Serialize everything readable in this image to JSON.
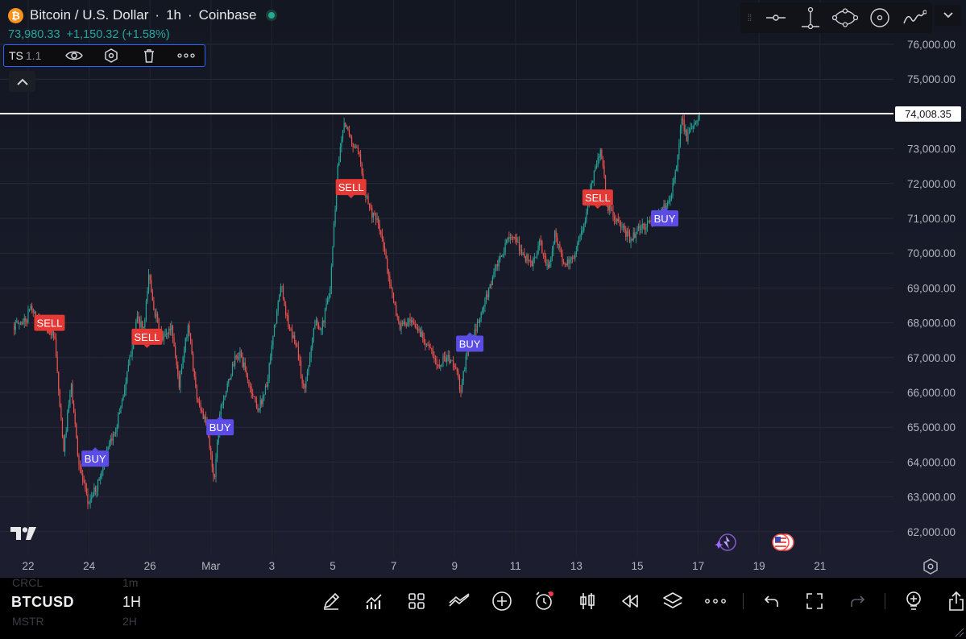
{
  "header": {
    "currency_icon": "bitcoin-icon",
    "symbol_title": "Bitcoin / U.S. Dollar",
    "interval": "1h",
    "exchange": "Coinbase",
    "last_price": "73,980.33",
    "change": "+1,150.32 (+1.58%)",
    "change_color": "#26a69a"
  },
  "indicator": {
    "name": "TS",
    "param": "1.1",
    "icons": [
      "eye-icon",
      "settings-hex-icon",
      "trash-icon",
      "more-icon"
    ]
  },
  "drawing_toolbar": {
    "tools": [
      "horizontal-ray-icon",
      "vertical-line-icon",
      "shapes-icon",
      "circle-icon",
      "brush-icon"
    ]
  },
  "price_marker": {
    "label": "74,008.35",
    "value": 74008.35
  },
  "colors": {
    "background_top": "#131722",
    "background_bottom": "#1c1d2e",
    "up": "#26a69a",
    "down": "#ef5350",
    "sell_tag": "#e53935",
    "buy_tag": "#5b4ce6"
  },
  "chart_data": {
    "type": "candlestick",
    "title": "",
    "xlabel": "",
    "ylabel": "",
    "ylim": [
      61500,
      76500
    ],
    "y_ticks": [
      62000,
      63000,
      64000,
      65000,
      66000,
      67000,
      68000,
      69000,
      70000,
      71000,
      72000,
      73000,
      74000,
      75000,
      76000
    ],
    "y_tick_labels": [
      "62,000.00",
      "63,000.00",
      "64,000.00",
      "65,000.00",
      "66,000.00",
      "67,000.00",
      "68,000.00",
      "69,000.00",
      "70,000.00",
      "71,000.00",
      "72,000.00",
      "73,000.00",
      "74,000.00",
      "75,000.00",
      "76,000.00"
    ],
    "x_ticks": [
      {
        "label": "22",
        "day": 0
      },
      {
        "label": "24",
        "day": 2
      },
      {
        "label": "26",
        "day": 4
      },
      {
        "label": "Mar",
        "day": 6
      },
      {
        "label": "3",
        "day": 8
      },
      {
        "label": "5",
        "day": 10
      },
      {
        "label": "7",
        "day": 12
      },
      {
        "label": "9",
        "day": 14
      },
      {
        "label": "11",
        "day": 16
      },
      {
        "label": "13",
        "day": 18
      },
      {
        "label": "15",
        "day": 20
      },
      {
        "label": "17",
        "day": 22
      },
      {
        "label": "19",
        "day": 24
      },
      {
        "label": "21",
        "day": 26
      }
    ],
    "x_domain": [
      -0.46,
      28.9
    ],
    "price_path": [
      [
        -0.46,
        67900
      ],
      [
        0.0,
        68100
      ],
      [
        0.1,
        68500
      ],
      [
        0.35,
        68100
      ],
      [
        0.55,
        68000
      ],
      [
        0.9,
        67600
      ],
      [
        1.2,
        64300
      ],
      [
        1.45,
        66200
      ],
      [
        1.7,
        64000
      ],
      [
        2.0,
        62800
      ],
      [
        2.3,
        63300
      ],
      [
        2.6,
        64200
      ],
      [
        2.9,
        64900
      ],
      [
        3.25,
        66300
      ],
      [
        3.6,
        68100
      ],
      [
        3.85,
        67800
      ],
      [
        4.0,
        69400
      ],
      [
        4.2,
        68300
      ],
      [
        4.45,
        67500
      ],
      [
        4.75,
        67900
      ],
      [
        5.0,
        66200
      ],
      [
        5.3,
        68000
      ],
      [
        5.55,
        66000
      ],
      [
        5.9,
        65000
      ],
      [
        6.15,
        63500
      ],
      [
        6.35,
        65600
      ],
      [
        6.6,
        66200
      ],
      [
        6.8,
        66900
      ],
      [
        7.0,
        67100
      ],
      [
        7.3,
        66200
      ],
      [
        7.6,
        65500
      ],
      [
        7.9,
        66300
      ],
      [
        8.1,
        67700
      ],
      [
        8.35,
        69100
      ],
      [
        8.6,
        67800
      ],
      [
        8.85,
        67400
      ],
      [
        9.1,
        66000
      ],
      [
        9.45,
        68000
      ],
      [
        9.7,
        67900
      ],
      [
        9.95,
        69000
      ],
      [
        10.2,
        72400
      ],
      [
        10.4,
        73800
      ],
      [
        10.6,
        73300
      ],
      [
        10.9,
        72800
      ],
      [
        11.1,
        71800
      ],
      [
        11.3,
        71200
      ],
      [
        11.55,
        70800
      ],
      [
        11.8,
        69800
      ],
      [
        12.05,
        68500
      ],
      [
        12.25,
        67900
      ],
      [
        12.55,
        68000
      ],
      [
        12.85,
        67800
      ],
      [
        13.15,
        67400
      ],
      [
        13.45,
        66800
      ],
      [
        13.75,
        67000
      ],
      [
        14.05,
        66800
      ],
      [
        14.25,
        66000
      ],
      [
        14.45,
        67200
      ],
      [
        14.75,
        67800
      ],
      [
        15.05,
        68600
      ],
      [
        15.35,
        69500
      ],
      [
        15.6,
        69900
      ],
      [
        15.85,
        70600
      ],
      [
        16.05,
        70300
      ],
      [
        16.35,
        69900
      ],
      [
        16.6,
        69700
      ],
      [
        16.85,
        70300
      ],
      [
        17.1,
        69500
      ],
      [
        17.35,
        70600
      ],
      [
        17.6,
        69700
      ],
      [
        17.85,
        69700
      ],
      [
        18.05,
        70200
      ],
      [
        18.35,
        71000
      ],
      [
        18.6,
        72300
      ],
      [
        18.85,
        73000
      ],
      [
        19.05,
        71400
      ],
      [
        19.3,
        71000
      ],
      [
        19.55,
        70700
      ],
      [
        19.8,
        70400
      ],
      [
        20.1,
        70700
      ],
      [
        20.35,
        70800
      ],
      [
        20.6,
        71000
      ],
      [
        20.85,
        71200
      ],
      [
        21.05,
        71500
      ],
      [
        21.25,
        72000
      ],
      [
        21.4,
        73000
      ],
      [
        21.5,
        74000
      ],
      [
        21.65,
        73300
      ],
      [
        21.9,
        73600
      ],
      [
        22.05,
        73950
      ]
    ],
    "signals": [
      {
        "label": "SELL",
        "day": 0.7,
        "price": 68000
      },
      {
        "label": "SELL",
        "day": 3.9,
        "price": 67600
      },
      {
        "label": "SELL",
        "day": 10.6,
        "price": 71900
      },
      {
        "label": "SELL",
        "day": 18.7,
        "price": 71600
      },
      {
        "label": "BUY",
        "day": 2.2,
        "price": 64100
      },
      {
        "label": "BUY",
        "day": 6.3,
        "price": 65000
      },
      {
        "label": "BUY",
        "day": 14.5,
        "price": 67400
      },
      {
        "label": "BUY",
        "day": 20.9,
        "price": 71000
      }
    ],
    "grid": true,
    "legend": "none"
  },
  "bottom_bar": {
    "symbol": "BTCUSD",
    "interval": "1H",
    "ghost_symbols": [
      "CRCL",
      "MSTR"
    ],
    "ghost_intervals": [
      "1m",
      "2H"
    ],
    "tools": [
      "pen-icon",
      "indicators-icon",
      "templates-icon",
      "compare-icon",
      "add-icon",
      "alert-icon",
      "candles-icon",
      "replay-icon",
      "layers-icon",
      "more-icon"
    ],
    "tools_right": [
      "undo-icon",
      "fullscreen-icon",
      "redo-icon"
    ],
    "tools_far_right": [
      "ideas-icon",
      "share-icon"
    ]
  }
}
